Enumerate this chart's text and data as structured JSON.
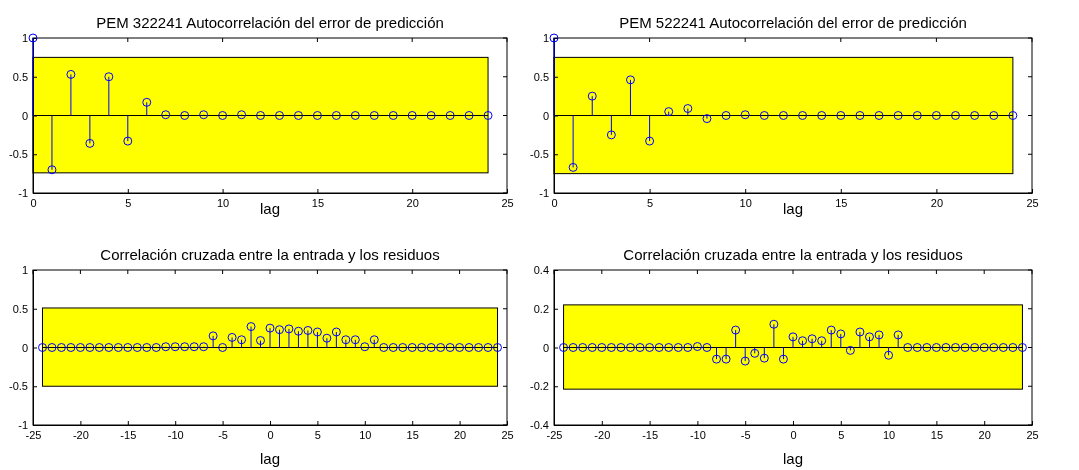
{
  "chart_data": [
    {
      "type": "lollipop",
      "title": "PEM 322241 Autocorrelación del error de predicción",
      "xlabel": "lag",
      "x": [
        0,
        1,
        2,
        3,
        4,
        5,
        6,
        7,
        8,
        9,
        10,
        11,
        12,
        13,
        14,
        15,
        16,
        17,
        18,
        19,
        20,
        21,
        22,
        23,
        24
      ],
      "series": [
        {
          "color": "#0000ff",
          "values": [
            1,
            -0.7,
            0.53,
            -0.36,
            0.5,
            -0.33,
            0.17,
            0.01,
            0,
            0.01,
            0,
            0.01,
            0,
            0,
            0,
            0,
            0,
            0,
            0,
            0,
            0,
            0,
            0,
            0,
            0
          ]
        }
      ],
      "xlim": [
        0,
        25
      ],
      "xticks": [
        0,
        5,
        10,
        15,
        20,
        25
      ],
      "ylim": [
        -1,
        1
      ],
      "yticks": [
        -1,
        -0.5,
        0,
        0.5,
        1
      ],
      "marker": "circle",
      "bands": [
        {
          "axis": "y",
          "from": -0.74,
          "to": 0.75,
          "color": "#ffff00"
        }
      ]
    },
    {
      "type": "lollipop",
      "title": "PEM 522241 Autocorrelación del error de predicción",
      "xlabel": "lag",
      "x": [
        0,
        1,
        2,
        3,
        4,
        5,
        6,
        7,
        8,
        9,
        10,
        11,
        12,
        13,
        14,
        15,
        16,
        17,
        18,
        19,
        20,
        21,
        22,
        23,
        24
      ],
      "series": [
        {
          "color": "#0000ff",
          "values": [
            1,
            -0.67,
            0.25,
            -0.25,
            0.46,
            -0.33,
            0.05,
            0.09,
            -0.04,
            0,
            0.01,
            0,
            0,
            0,
            0,
            0,
            0,
            0,
            0,
            0,
            0,
            0,
            0,
            0,
            0
          ]
        }
      ],
      "xlim": [
        0,
        25
      ],
      "xticks": [
        0,
        5,
        10,
        15,
        20,
        25
      ],
      "ylim": [
        -1,
        1
      ],
      "yticks": [
        -1,
        -0.5,
        0,
        0.5,
        1
      ],
      "marker": "circle",
      "bands": [
        {
          "axis": "y",
          "from": -0.75,
          "to": 0.75,
          "color": "#ffff00"
        }
      ]
    },
    {
      "type": "lollipop",
      "title": "Correlación cruzada entre la entrada y los residuos",
      "xlabel": "lag",
      "x": [
        -24,
        -23,
        -22,
        -21,
        -20,
        -19,
        -18,
        -17,
        -16,
        -15,
        -14,
        -13,
        -12,
        -11,
        -10,
        -9,
        -8,
        -7,
        -6,
        -5,
        -4,
        -3,
        -2,
        -1,
        0,
        1,
        2,
        3,
        4,
        5,
        6,
        7,
        8,
        9,
        10,
        11,
        12,
        13,
        14,
        15,
        16,
        17,
        18,
        19,
        20,
        21,
        22,
        23,
        24
      ],
      "series": [
        {
          "color": "#0000ff",
          "values": [
            0,
            0,
            0,
            0,
            0,
            0,
            0,
            0,
            0,
            0,
            0,
            0,
            0,
            0.01,
            0.01,
            0.01,
            0.01,
            0.01,
            0.15,
            0,
            0.13,
            0.1,
            0.27,
            0.09,
            0.25,
            0.23,
            0.24,
            0.21,
            0.22,
            0.2,
            0.12,
            0.2,
            0.1,
            0.1,
            0.01,
            0.1,
            0,
            0,
            0,
            0,
            0,
            0,
            0,
            0,
            0,
            0,
            0,
            0,
            0
          ]
        }
      ],
      "xlim": [
        -25,
        25
      ],
      "xticks": [
        -25,
        -20,
        -15,
        -10,
        -5,
        0,
        5,
        10,
        15,
        20,
        25
      ],
      "ylim": [
        -1,
        1
      ],
      "yticks": [
        -1,
        -0.5,
        0,
        0.5,
        1
      ],
      "marker": "circle",
      "bands": [
        {
          "axis": "y",
          "from": -0.5,
          "to": 0.51,
          "color": "#ffff00"
        }
      ]
    },
    {
      "type": "lollipop",
      "title": "Correlación cruzada entre la entrada y los residuos",
      "xlabel": "lag",
      "x": [
        -24,
        -23,
        -22,
        -21,
        -20,
        -19,
        -18,
        -17,
        -16,
        -15,
        -14,
        -13,
        -12,
        -11,
        -10,
        -9,
        -8,
        -7,
        -6,
        -5,
        -4,
        -3,
        -2,
        -1,
        0,
        1,
        2,
        3,
        4,
        5,
        6,
        7,
        8,
        9,
        10,
        11,
        12,
        13,
        14,
        15,
        16,
        17,
        18,
        19,
        20,
        21,
        22,
        23,
        24
      ],
      "series": [
        {
          "color": "#0000ff",
          "values": [
            0,
            0,
            0,
            0,
            0,
            0,
            0,
            0,
            0,
            0,
            0,
            0,
            0,
            0,
            0.005,
            0,
            -0.06,
            -0.06,
            0.09,
            -0.07,
            -0.03,
            -0.055,
            0.12,
            -0.06,
            0.055,
            0.035,
            0.045,
            0.035,
            0.09,
            0.07,
            -0.015,
            0.08,
            0.055,
            0.065,
            -0.04,
            0.065,
            0,
            0,
            0,
            0,
            0,
            0,
            0,
            0,
            0,
            0,
            0,
            0,
            0
          ]
        }
      ],
      "xlim": [
        -25,
        25
      ],
      "xticks": [
        -25,
        -20,
        -15,
        -10,
        -5,
        0,
        5,
        10,
        15,
        20,
        25
      ],
      "ylim": [
        -0.4,
        0.4
      ],
      "yticks": [
        -0.4,
        -0.2,
        0,
        0.2,
        0.4
      ],
      "marker": "circle",
      "bands": [
        {
          "axis": "y",
          "from": -0.215,
          "to": 0.22,
          "color": "#ffff00"
        }
      ]
    }
  ]
}
